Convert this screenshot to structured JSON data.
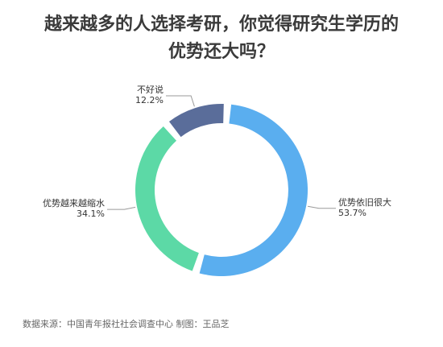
{
  "title_line1": "越来越多的人选择考研，你觉得研究生学历的",
  "title_line2": "优势还大吗？",
  "source": "数据来源：中国青年报社社会调查中心 制图：王品芝",
  "chart_data": {
    "type": "pie",
    "style": "donut",
    "title": "越来越多的人选择考研，你觉得研究生学历的优势还大吗？",
    "slices": [
      {
        "label": "优势依旧很大",
        "value": 53.7,
        "value_text": "53.7%",
        "color": "#5aaeef"
      },
      {
        "label": "优势越来越缩水",
        "value": 34.1,
        "value_text": "34.1%",
        "color": "#5cd9a6"
      },
      {
        "label": "不好说",
        "value": 12.2,
        "value_text": "12.2%",
        "color": "#5a6d9a"
      }
    ],
    "leader_line_color": "#9a9a9a"
  }
}
